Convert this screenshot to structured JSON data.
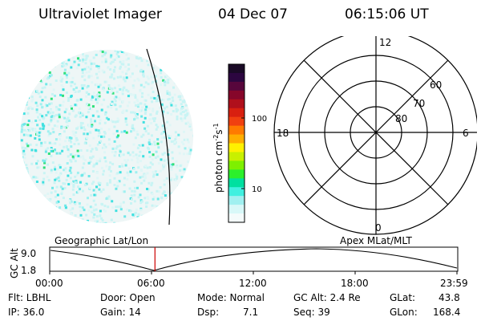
{
  "header": {
    "instrument": "Ultraviolet Imager",
    "date": "04 Dec 07",
    "time": "06:15:06 UT"
  },
  "colorbar": {
    "label": "photon cm",
    "label_exp1": "-2",
    "label_s": "s",
    "label_exp2": "-1",
    "ticks": [
      "100",
      "10"
    ],
    "colors": [
      "#1a0a26",
      "#2c0640",
      "#57063c",
      "#86062a",
      "#b0101c",
      "#d82010",
      "#f04010",
      "#ff7a00",
      "#ffae00",
      "#fff100",
      "#c8f000",
      "#7ef000",
      "#2cf02c",
      "#00e0a0",
      "#40f0e0",
      "#a0f0f0",
      "#d8f8f8",
      "#f4fbfb"
    ]
  },
  "polar": {
    "mlt_labels": [
      "12",
      "18",
      "6",
      "0"
    ],
    "lat_labels": [
      "60",
      "70",
      "80"
    ]
  },
  "timeline": {
    "left_label": "Geographic Lat/Lon",
    "right_label": "Apex MLat/MLT",
    "y_axis_label": "GC Alt",
    "y_ticks": [
      "9.0",
      "1.8"
    ],
    "x_ticks": [
      "00:00",
      "06:00",
      "12:00",
      "18:00",
      "23:59"
    ],
    "current_marker_fraction": 0.258,
    "marker_color": "#cc0000"
  },
  "footer": {
    "flt": "Flt: LBHL",
    "ip": "IP: 36.0",
    "door": "Door: Open",
    "gain": "Gain: 14",
    "mode": "Mode: Normal",
    "dsp_label": "Dsp:",
    "dsp_value": "7.1",
    "gc_alt": "GC Alt: 2.4 Re",
    "seq": "Seq: 39",
    "glat_label": "GLat:",
    "glat_value": "43.8",
    "glon_label": "GLon:",
    "glon_value": "168.4"
  }
}
